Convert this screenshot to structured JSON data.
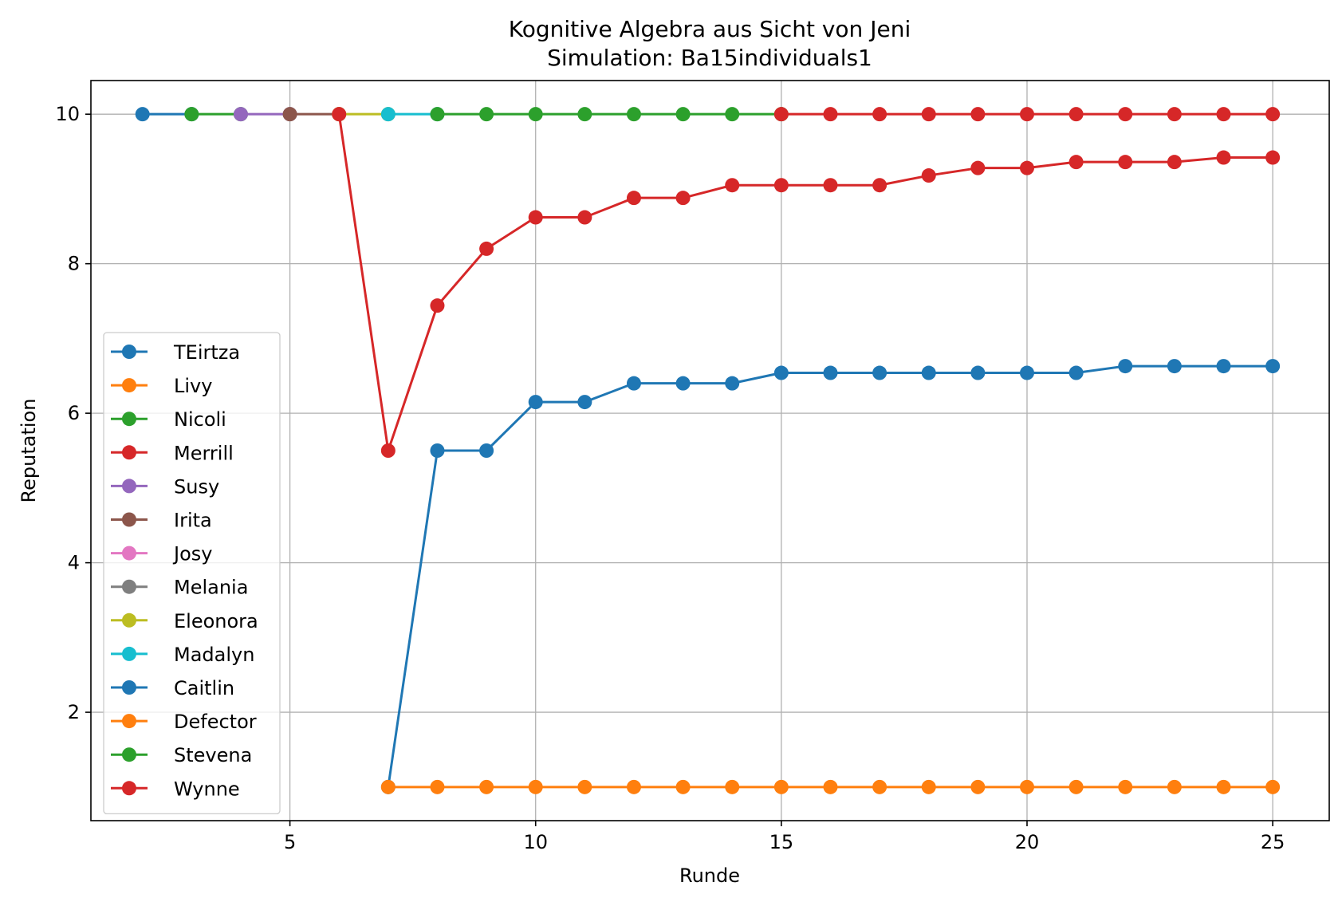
{
  "chart_data": {
    "type": "line",
    "title": "Kognitive Algebra aus Sicht von Jeni",
    "subtitle": "Simulation: Ba15individuals1",
    "xlabel": "Runde",
    "ylabel": "Reputation",
    "xlim": [
      0.95,
      26.15
    ],
    "ylim": [
      0.55,
      10.45
    ],
    "xticks": [
      5,
      10,
      15,
      20,
      25
    ],
    "yticks": [
      2,
      4,
      6,
      8,
      10
    ],
    "grid": true,
    "legend_position": "center-left",
    "series": [
      {
        "name": "TEirtza",
        "color": "#1f77b4",
        "x": [
          2,
          3
        ],
        "y": [
          10,
          10
        ]
      },
      {
        "name": "Livy",
        "color": "#ff7f0e",
        "x": [],
        "y": []
      },
      {
        "name": "Nicoli",
        "color": "#2ca02c",
        "x": [
          3,
          4
        ],
        "y": [
          10,
          10
        ]
      },
      {
        "name": "Merrill",
        "color": "#d62728",
        "x": [],
        "y": []
      },
      {
        "name": "Susy",
        "color": "#9467bd",
        "x": [
          4,
          5
        ],
        "y": [
          10,
          10
        ]
      },
      {
        "name": "Irita",
        "color": "#8c564b",
        "x": [
          5,
          6
        ],
        "y": [
          10,
          10
        ]
      },
      {
        "name": "Josy",
        "color": "#e377c2",
        "x": [],
        "y": []
      },
      {
        "name": "Melania",
        "color": "#7f7f7f",
        "x": [],
        "y": []
      },
      {
        "name": "Eleonora",
        "color": "#bcbd22",
        "x": [
          6,
          7
        ],
        "y": [
          10,
          10
        ]
      },
      {
        "name": "Madalyn",
        "color": "#17becf",
        "x": [
          7,
          8
        ],
        "y": [
          10,
          10
        ]
      },
      {
        "name": "Caitlin",
        "color": "#1f77b4",
        "x": [
          7,
          8,
          9,
          10,
          11,
          12,
          13,
          14,
          15,
          16,
          17,
          18,
          19,
          20,
          21,
          22,
          23,
          24,
          25
        ],
        "y": [
          1,
          5.5,
          5.5,
          6.15,
          6.15,
          6.4,
          6.4,
          6.4,
          6.54,
          6.54,
          6.54,
          6.54,
          6.54,
          6.54,
          6.54,
          6.63,
          6.63,
          6.63,
          6.63
        ]
      },
      {
        "name": "Defector",
        "color": "#ff7f0e",
        "x": [
          7,
          8,
          9,
          10,
          11,
          12,
          13,
          14,
          15,
          16,
          17,
          18,
          19,
          20,
          21,
          22,
          23,
          24,
          25
        ],
        "y": [
          1,
          1,
          1,
          1,
          1,
          1,
          1,
          1,
          1,
          1,
          1,
          1,
          1,
          1,
          1,
          1,
          1,
          1,
          1
        ]
      },
      {
        "name": "Stevena",
        "color": "#2ca02c",
        "x": [
          8,
          9,
          10,
          11,
          12,
          13,
          14,
          15
        ],
        "y": [
          10,
          10,
          10,
          10,
          10,
          10,
          10,
          10
        ]
      },
      {
        "name": "Wynne",
        "color": "#d62728",
        "x": [
          6,
          7,
          8,
          9,
          10,
          11,
          12,
          13,
          14,
          15,
          16,
          17,
          18,
          19,
          20,
          21,
          22,
          23,
          24,
          25
        ],
        "y": [
          10,
          5.5,
          7.44,
          8.2,
          8.62,
          8.62,
          8.88,
          8.88,
          9.05,
          9.05,
          9.05,
          9.05,
          9.18,
          9.28,
          9.28,
          9.36,
          9.36,
          9.36,
          9.42,
          9.42
        ]
      },
      {
        "name": "Wynne-top",
        "color": "#d62728",
        "x": [
          15,
          16,
          17,
          18,
          19,
          20,
          21,
          22,
          23,
          24,
          25
        ],
        "y": [
          10,
          10,
          10,
          10,
          10,
          10,
          10,
          10,
          10,
          10,
          10
        ],
        "legend": false
      }
    ]
  }
}
